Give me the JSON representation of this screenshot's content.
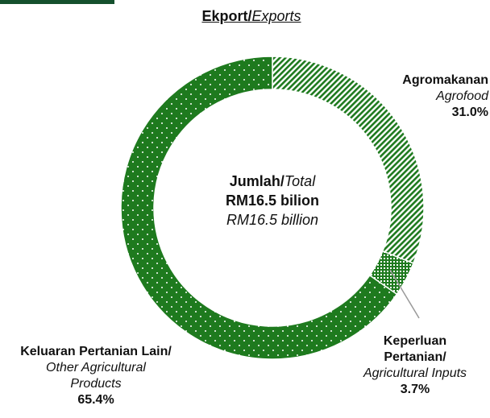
{
  "chart_data": {
    "type": "donut",
    "title": {
      "bold": "Ekport/",
      "italic": "Exports"
    },
    "center_label": {
      "line1_bold": "Jumlah/",
      "line1_italic": "Total",
      "line2": "RM16.5 bilion",
      "line3": "RM16.5 billion"
    },
    "categories": [
      "Agromakanan",
      "Keperluan Pertanian/",
      "Keluaran Pertanian Lain/"
    ],
    "categories_en": [
      "Agrofood",
      "Agricultural Inputs",
      "Other Agricultural Products"
    ],
    "values": [
      31.0,
      3.7,
      65.4
    ],
    "value_labels": [
      "31.0%",
      "3.7%",
      "65.4%"
    ],
    "color": "#1e7a1e"
  }
}
